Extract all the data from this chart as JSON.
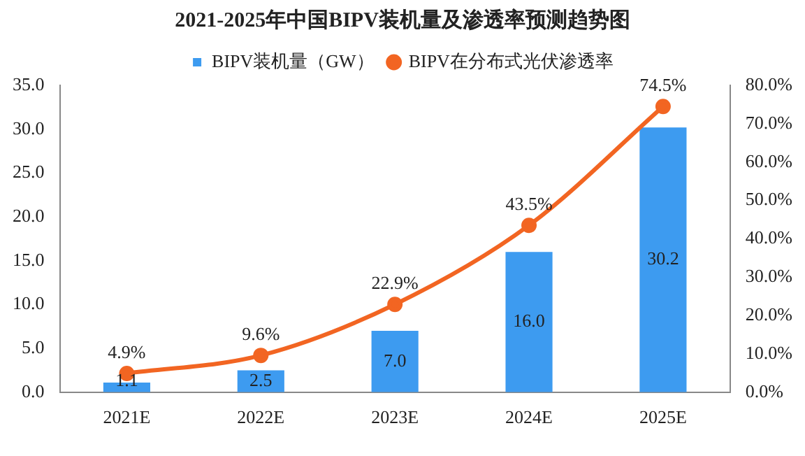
{
  "chart_data": {
    "type": "bar",
    "title": "2021-2025年中国BIPV装机量及渗透率预测趋势图",
    "categories": [
      "2021E",
      "2022E",
      "2023E",
      "2024E",
      "2025E"
    ],
    "series": [
      {
        "name": "BIPV装机量（GW）",
        "color": "#3d9bf0",
        "values": [
          1.1,
          2.5,
          7.0,
          16.0,
          30.2
        ],
        "value_labels": [
          "1.1",
          "2.5",
          "7.0",
          "16.0",
          "30.2"
        ]
      },
      {
        "name": "BIPV在分布式光伏渗透率",
        "type": "line",
        "axis": "y2",
        "color": "#f26522",
        "values": [
          4.9,
          9.6,
          22.9,
          43.5,
          74.5
        ],
        "value_labels": [
          "4.9%",
          "9.6%",
          "22.9%",
          "43.5%",
          "74.5%"
        ]
      }
    ],
    "ylim": [
      0,
      35
    ],
    "yticks": [
      {
        "value": 0,
        "label": "0.0"
      },
      {
        "value": 5,
        "label": "5.0"
      },
      {
        "value": 10,
        "label": "10.0"
      },
      {
        "value": 15,
        "label": "15.0"
      },
      {
        "value": 20,
        "label": "20.0"
      },
      {
        "value": 25,
        "label": "25.0"
      },
      {
        "value": 30,
        "label": "30.0"
      },
      {
        "value": 35,
        "label": "35.0"
      }
    ],
    "y2lim": [
      0,
      80
    ],
    "y2ticks": [
      {
        "value": 0,
        "label": "0.0%"
      },
      {
        "value": 10,
        "label": "10.0%"
      },
      {
        "value": 20,
        "label": "20.0%"
      },
      {
        "value": 30,
        "label": "30.0%"
      },
      {
        "value": 40,
        "label": "40.0%"
      },
      {
        "value": 50,
        "label": "50.0%"
      },
      {
        "value": 60,
        "label": "60.0%"
      },
      {
        "value": 70,
        "label": "70.0%"
      },
      {
        "value": 80,
        "label": "80.0%"
      }
    ],
    "grid": false,
    "legend": "top",
    "marker": "circle"
  }
}
